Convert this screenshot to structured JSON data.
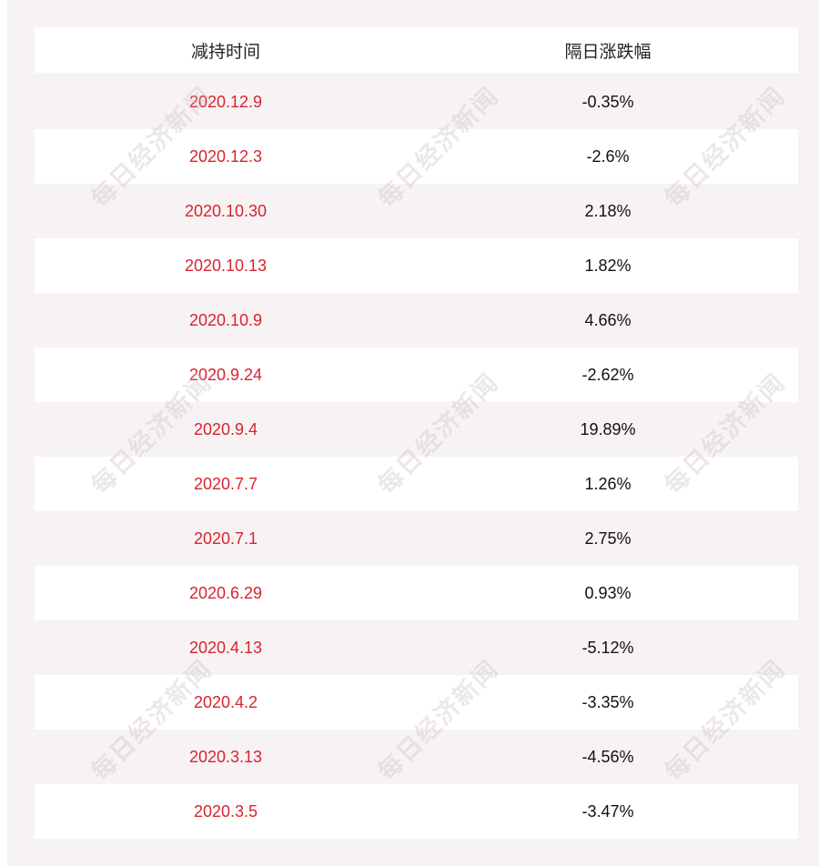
{
  "table": {
    "header": [
      "减持时间",
      "隔日涨跌幅"
    ],
    "rows": [
      [
        "2020.12.9",
        "-0.35%"
      ],
      [
        "2020.12.3",
        "-2.6%"
      ],
      [
        "2020.10.30",
        "2.18%"
      ],
      [
        "2020.10.13",
        "1.82%"
      ],
      [
        "2020.10.9",
        "4.66%"
      ],
      [
        "2020.9.24",
        "-2.62%"
      ],
      [
        "2020.9.4",
        "19.89%"
      ],
      [
        "2020.7.7",
        "1.26%"
      ],
      [
        "2020.7.1",
        "2.75%"
      ],
      [
        "2020.6.29",
        "0.93%"
      ],
      [
        "2020.4.13",
        "-5.12%"
      ],
      [
        "2020.4.2",
        "-3.35%"
      ],
      [
        "2020.3.13",
        "-4.56%"
      ],
      [
        "2020.3.5",
        "-3.47%"
      ]
    ]
  },
  "watermark": "每日经济新闻"
}
